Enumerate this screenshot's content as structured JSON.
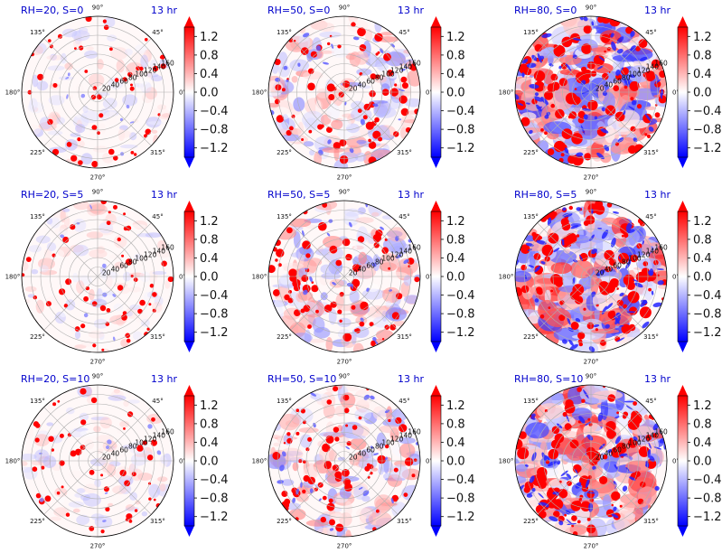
{
  "figure": {
    "colormap": "bwr",
    "colors": {
      "negative": "#0000ff",
      "zero": "#ffffff",
      "positive": "#ff0000",
      "title": "#0000cc"
    },
    "colorbar_ticks": [
      "1.2",
      "0.8",
      "0.4",
      "0.0",
      "−0.4",
      "−0.8",
      "−1.2"
    ],
    "colorbar_range": [
      -1.4,
      1.4
    ],
    "angle_labels": [
      "0°",
      "45°",
      "90°",
      "135°",
      "180°",
      "225°",
      "270°",
      "315°"
    ],
    "radial_labels": [
      "20",
      "40",
      "60",
      "80",
      "100",
      "120",
      "140",
      "160"
    ]
  },
  "chart_data": [
    {
      "type": "heatmap",
      "projection": "polar",
      "title": "RH=20, S=0",
      "time_label": "13 hr",
      "rmax": 160,
      "vmin": -1.4,
      "vmax": 1.4
    },
    {
      "type": "heatmap",
      "projection": "polar",
      "title": "RH=50, S=0",
      "time_label": "13 hr",
      "rmax": 160,
      "vmin": -1.4,
      "vmax": 1.4
    },
    {
      "type": "heatmap",
      "projection": "polar",
      "title": "RH=80, S=0",
      "time_label": "13 hr",
      "rmax": 160,
      "vmin": -1.4,
      "vmax": 1.4
    },
    {
      "type": "heatmap",
      "projection": "polar",
      "title": "RH=20, S=5",
      "time_label": "13 hr",
      "rmax": 160,
      "vmin": -1.4,
      "vmax": 1.4
    },
    {
      "type": "heatmap",
      "projection": "polar",
      "title": "RH=50, S=5",
      "time_label": "13 hr",
      "rmax": 160,
      "vmin": -1.4,
      "vmax": 1.4
    },
    {
      "type": "heatmap",
      "projection": "polar",
      "title": "RH=80, S=5",
      "time_label": "13 hr",
      "rmax": 160,
      "vmin": -1.4,
      "vmax": 1.4
    },
    {
      "type": "heatmap",
      "projection": "polar",
      "title": "RH=20, S=10",
      "time_label": "13 hr",
      "rmax": 160,
      "vmin": -1.4,
      "vmax": 1.4
    },
    {
      "type": "heatmap",
      "projection": "polar",
      "title": "RH=50, S=10",
      "time_label": "13 hr",
      "rmax": 160,
      "vmin": -1.4,
      "vmax": 1.4
    },
    {
      "type": "heatmap",
      "projection": "polar",
      "title": "RH=80, S=10",
      "time_label": "13 hr",
      "rmax": 160,
      "vmin": -1.4,
      "vmax": 1.4
    }
  ]
}
